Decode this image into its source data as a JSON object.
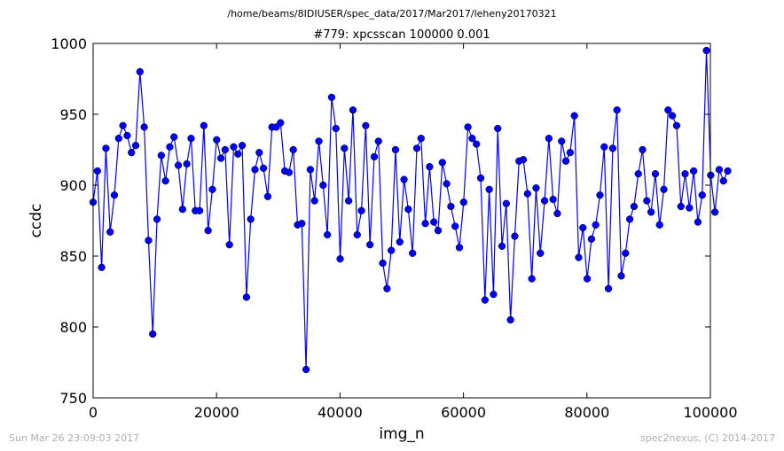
{
  "header": {
    "path": "/home/beams/8IDIUSER/spec_data/2017/Mar2017/leheny20170321"
  },
  "footer": {
    "timestamp": "Sun Mar 26 23:09:03 2017",
    "credit": "spec2nexus, (C) 2014-2017"
  },
  "chart_data": {
    "type": "line",
    "title": "#779: xpcsscan 100000 0.001",
    "xlabel": "img_n",
    "ylabel": "ccdc",
    "xlim": [
      0,
      100000
    ],
    "ylim": [
      750,
      1000
    ],
    "xticks": [
      0,
      20000,
      40000,
      60000,
      80000,
      100000
    ],
    "yticks": [
      750,
      800,
      850,
      900,
      950,
      1000
    ],
    "grid": false,
    "marker": "circle",
    "color": "#0000ff",
    "x_start": 0,
    "x_step": 690,
    "values": [
      888,
      910,
      842,
      926,
      867,
      893,
      933,
      942,
      935,
      923,
      928,
      980,
      941,
      861,
      795,
      876,
      921,
      903,
      927,
      934,
      914,
      883,
      915,
      933,
      882,
      882,
      942,
      868,
      897,
      932,
      919,
      925,
      858,
      927,
      922,
      928,
      821,
      876,
      911,
      923,
      912,
      892,
      941,
      941,
      944,
      910,
      909,
      925,
      872,
      873,
      770,
      911,
      889,
      931,
      900,
      865,
      962,
      940,
      848,
      926,
      889,
      953,
      865,
      882,
      942,
      858,
      920,
      931,
      845,
      827,
      854,
      925,
      860,
      904,
      883,
      852,
      926,
      933,
      873,
      913,
      874,
      868,
      916,
      901,
      885,
      871,
      856,
      888,
      941,
      933,
      929,
      905,
      819,
      897,
      823,
      940,
      857,
      887,
      805,
      864,
      917,
      918,
      894,
      834,
      898,
      852,
      889,
      933,
      890,
      880,
      931,
      917,
      923,
      949,
      849,
      870,
      834,
      862,
      872,
      893,
      927,
      827,
      926,
      953,
      836,
      852,
      876,
      885,
      908,
      925,
      889,
      881,
      908,
      872,
      897,
      953,
      949,
      942,
      885,
      908,
      884,
      910,
      874,
      893,
      995,
      907,
      881,
      911,
      903,
      910
    ]
  }
}
